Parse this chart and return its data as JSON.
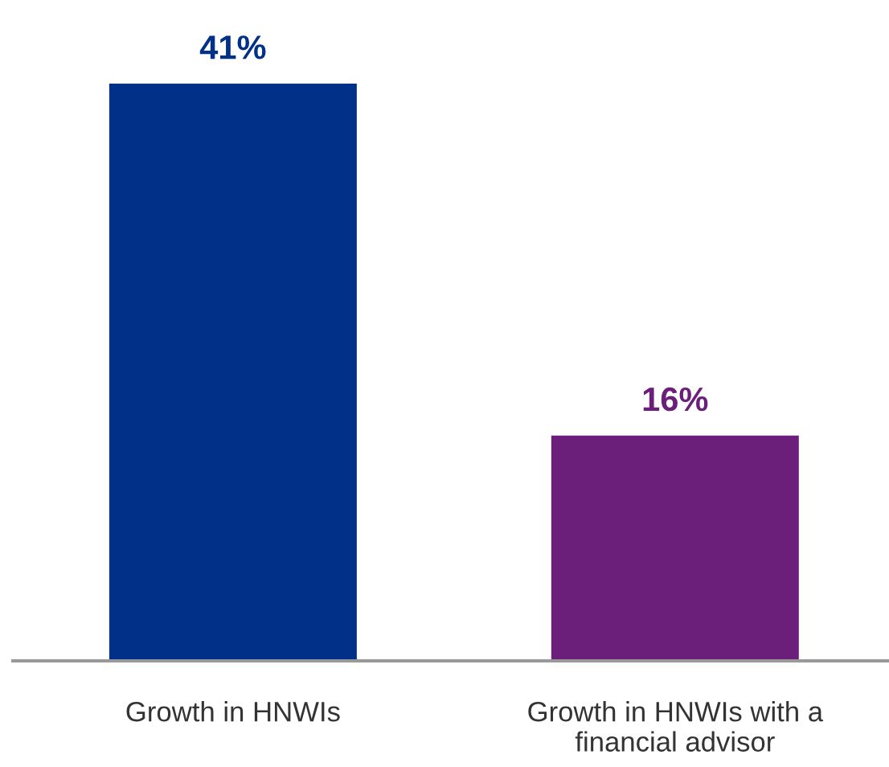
{
  "chart_data": {
    "type": "bar",
    "categories": [
      "Growth in HNWIs",
      "Growth in HNWIs with a\nfinancial advisor"
    ],
    "values": [
      41,
      16
    ],
    "colors": [
      "#003087",
      "#6b1f7a"
    ],
    "value_labels": [
      "41%",
      "16%"
    ],
    "tick_labels": "x",
    "grid": false,
    "legend": false
  }
}
